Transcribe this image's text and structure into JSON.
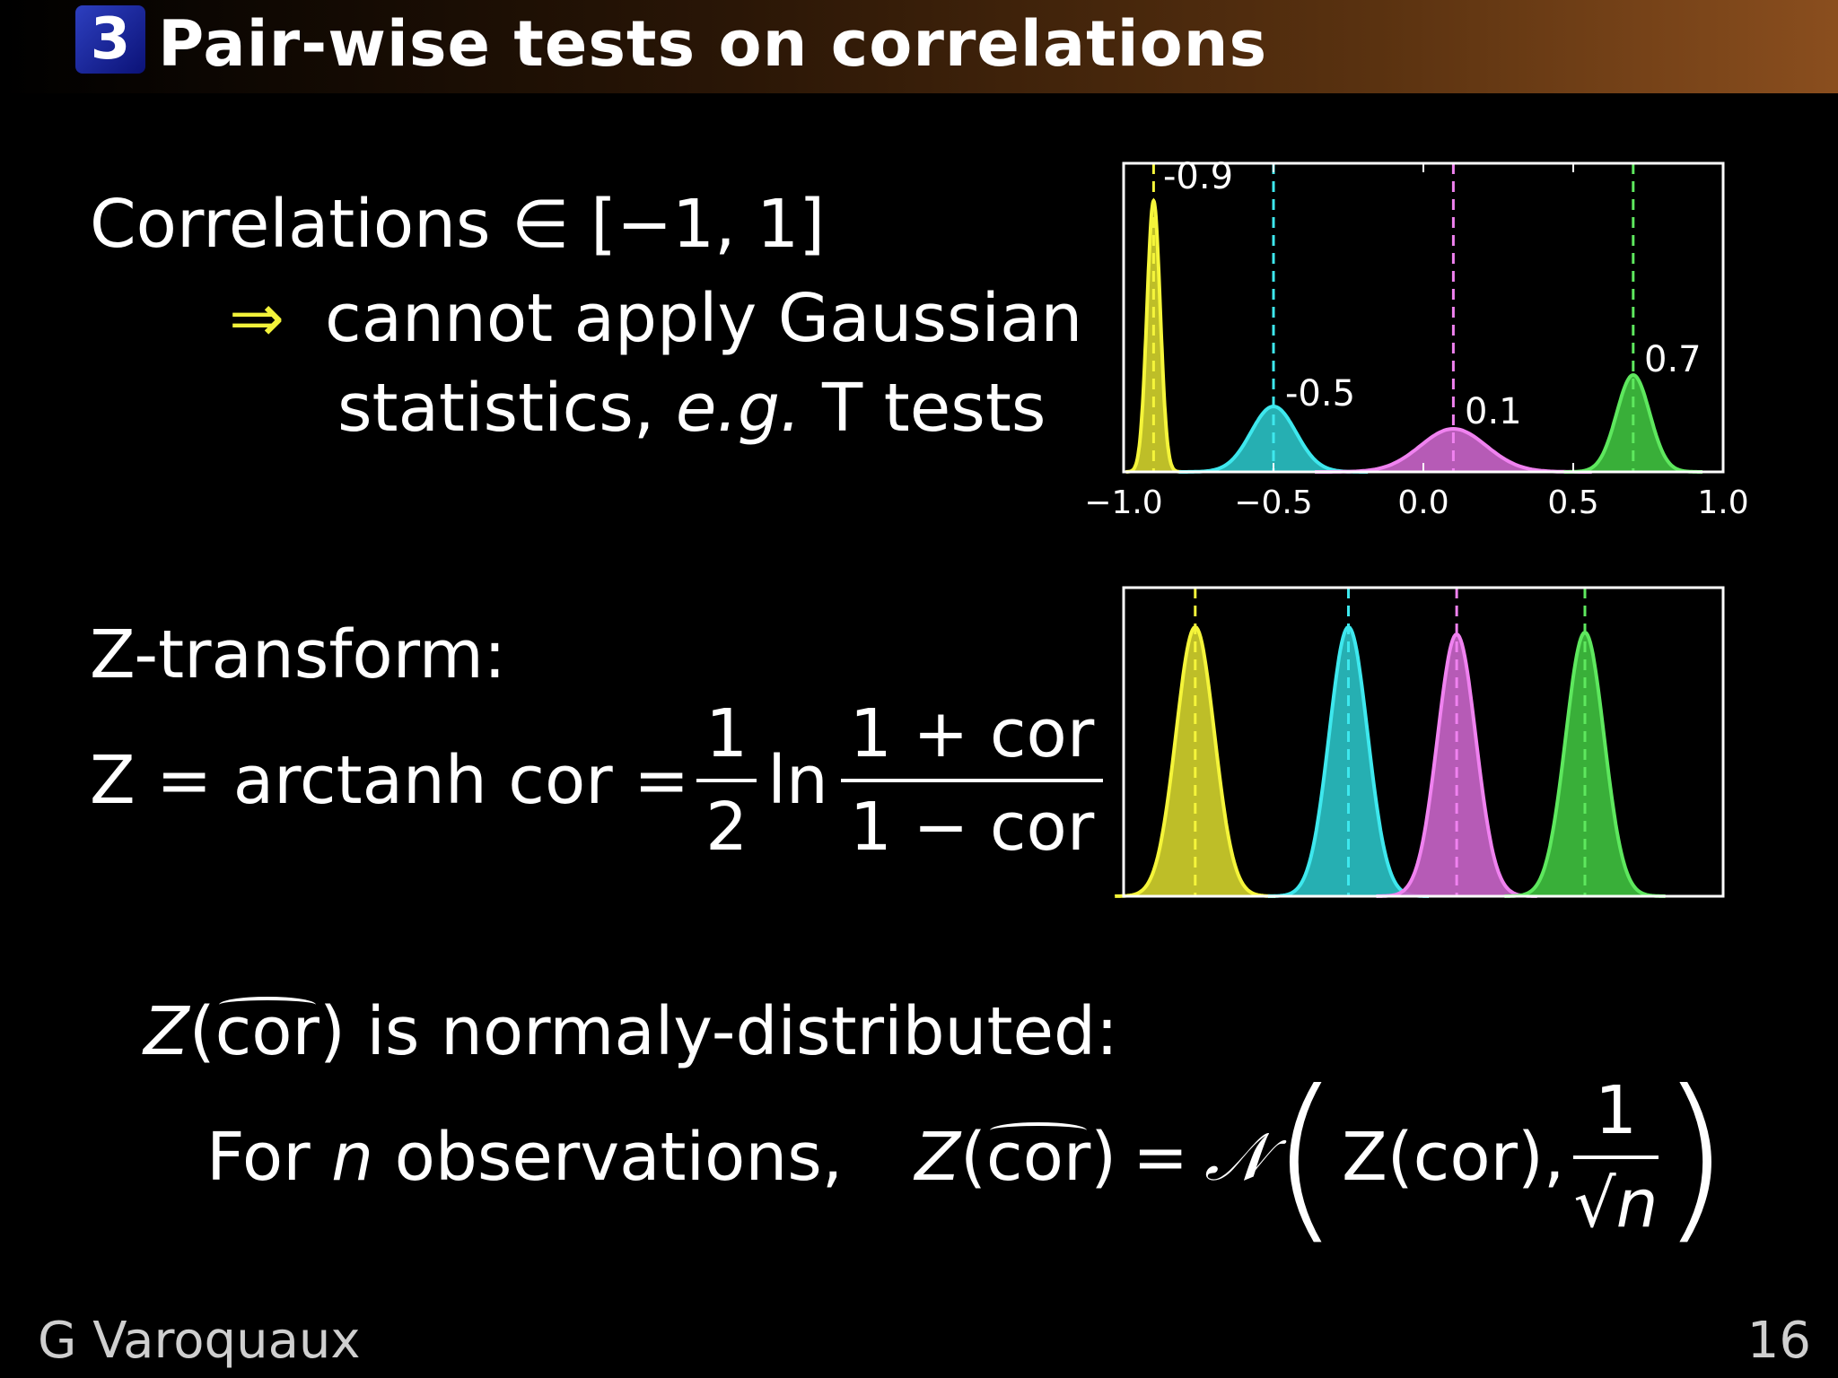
{
  "header": {
    "section_number": "3",
    "title": "Pair-wise tests on correlations"
  },
  "text": {
    "line1": "Correlations ∈ [−1, 1]",
    "arrow": "⇒",
    "line2": "cannot apply Gaussian",
    "line3a": "statistics,",
    "line3b": "e.g.",
    "line3c": "T tests",
    "ztransform": "Z-transform:",
    "formula_lhs": "Z = arctanh cor = ",
    "formula_half_num": "1",
    "formula_half_den": "2",
    "formula_ln": "ln",
    "formula_num": "1 + cor",
    "formula_den": "1 − cor",
    "normal_line": "is normaly-distributed:",
    "for_n": "For",
    "n": "n",
    "observations": "observations,",
    "z_sym": "Z",
    "cor": "cor",
    "eq_normal": "=",
    "N": "𝒩",
    "zcor_inner": "Z(cor),",
    "one": "1",
    "sqrt_n": "√n"
  },
  "footer": {
    "author": "G Varoquaux",
    "page": "16"
  },
  "chart_data": [
    {
      "type": "area",
      "xlim": [
        -1.0,
        1.0
      ],
      "x_ticks": [
        "−1.0",
        "−0.5",
        "0.0",
        "0.5",
        "1.0"
      ],
      "x_tick_values": [
        -1.0,
        -0.5,
        0.0,
        0.5,
        1.0
      ],
      "grid": false,
      "series": [
        {
          "label": "-0.9",
          "mean": -0.9,
          "sd": 0.022,
          "color": "#f5f53a",
          "fill": "#c8c82a"
        },
        {
          "label": "-0.5",
          "mean": -0.5,
          "sd": 0.075,
          "color": "#3ee8ee",
          "fill": "#28b8bc"
        },
        {
          "label": "0.1",
          "mean": 0.1,
          "sd": 0.11,
          "color": "#f082f0",
          "fill": "#c060c0"
        },
        {
          "label": "0.7",
          "mean": 0.7,
          "sd": 0.055,
          "color": "#5ee85e",
          "fill": "#3cb83c"
        }
      ]
    },
    {
      "type": "area",
      "grid": false,
      "series": [
        {
          "mean": -1.47,
          "sd": 0.115,
          "color": "#f5f53a",
          "fill": "#c8c82a"
        },
        {
          "mean": -0.55,
          "sd": 0.115,
          "color": "#3ee8ee",
          "fill": "#28b8bc"
        },
        {
          "mean": 0.1,
          "sd": 0.115,
          "color": "#f082f0",
          "fill": "#c060c0"
        },
        {
          "mean": 0.87,
          "sd": 0.115,
          "color": "#5ee85e",
          "fill": "#3cb83c"
        }
      ],
      "xlim": [
        -1.9,
        1.7
      ]
    }
  ]
}
